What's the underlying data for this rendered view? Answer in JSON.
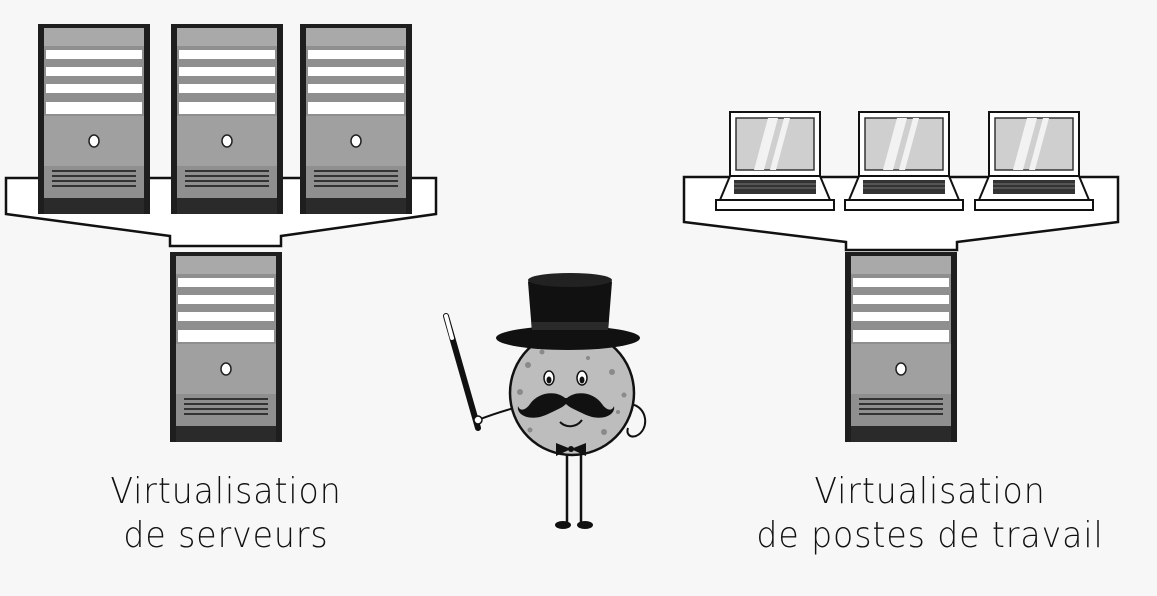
{
  "captions": {
    "left": {
      "line1": "Virtualisation",
      "line2": "de serveurs"
    },
    "right": {
      "line1": "Virtualisation",
      "line2": "de postes de travail"
    }
  },
  "colors": {
    "background": "#f7f7f7",
    "server_body": "#8c8c8c",
    "server_dark": "#1e1e1e",
    "slot": "#ffffff",
    "screen": "#c9c9c9",
    "outline": "#111111",
    "character_body": "#bdbdbd"
  },
  "icons": {
    "server": "server-tower-icon",
    "laptop": "laptop-icon",
    "character": "magician-mascot-icon"
  }
}
